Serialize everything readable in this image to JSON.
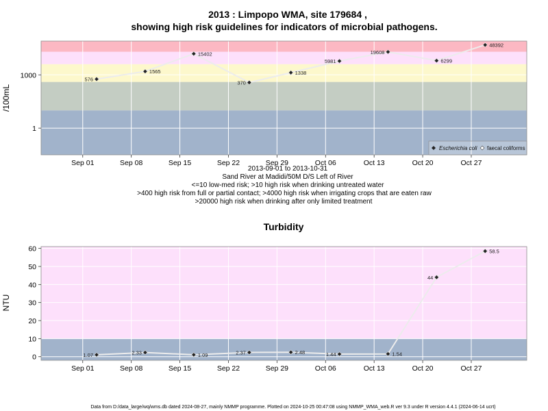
{
  "chart_data": [
    {
      "type": "line",
      "title_line1": "2013 : Limpopo WMA, site 179684 ,",
      "title_line2": "showing high risk guidelines for indicators of microbial pathogens.",
      "ylabel": "/100mL",
      "yscale": "log",
      "ylim": [
        0.0316,
        79400
      ],
      "y_ticks": [
        1,
        1000
      ],
      "y_tick_labels": [
        "1",
        "1000"
      ],
      "xlim": [
        "2013-08-26",
        "2013-11-04"
      ],
      "x_ticks": [
        "2013-09-01",
        "2013-09-08",
        "2013-09-15",
        "2013-09-22",
        "2013-09-29",
        "2013-10-06",
        "2013-10-13",
        "2013-10-20",
        "2013-10-27"
      ],
      "x_tick_labels": [
        "Sep 01",
        "Sep 08",
        "Sep 15",
        "Sep 22",
        "Sep 29",
        "Oct 06",
        "Oct 13",
        "Oct 20",
        "Oct 27"
      ],
      "bands": [
        {
          "from": 0.0316,
          "to": 10,
          "color": "#a1b3cb"
        },
        {
          "from": 10,
          "to": 400,
          "color": "#c4cdc3"
        },
        {
          "from": 400,
          "to": 4000,
          "color": "#fdf8cc"
        },
        {
          "from": 4000,
          "to": 20000,
          "color": "#fde0fb"
        },
        {
          "from": 20000,
          "to": 79400,
          "color": "#fcb8c3"
        }
      ],
      "series": [
        {
          "name": "Escherichia coli",
          "x": [
            "2013-09-03",
            "2013-09-10",
            "2013-09-17",
            "2013-09-25",
            "2013-10-01",
            "2013-10-08",
            "2013-10-15",
            "2013-10-22",
            "2013-10-29"
          ],
          "y": [
            576,
            1565,
            15402,
            370,
            1338,
            5981,
            19608,
            6299,
            48392
          ],
          "labels": [
            "576",
            "1565",
            "15402",
            "370",
            "1338",
            "5981",
            "19608",
            "6299",
            "48392"
          ],
          "label_side": [
            "left",
            "right",
            "right",
            "left",
            "right",
            "left",
            "left",
            "right",
            "right"
          ]
        },
        {
          "name": "faecal coliforms",
          "x": [],
          "y": []
        }
      ],
      "legend_position": "bottom-right",
      "x_caption": [
        "2013-09-01 to 2013-10-31",
        "Sand River at Madidi/50M D/S Left of River",
        "<=10 low-med risk; >10 high risk when drinking untreated water",
        ">400 high risk from full or partial contact; >4000 high risk when irrigating crops that are eaten raw",
        ">20000 high risk when drinking after only limited treatment"
      ]
    },
    {
      "type": "line",
      "title": "Turbidity",
      "ylabel": "NTU",
      "ylim": [
        -2,
        61
      ],
      "y_ticks": [
        0,
        10,
        20,
        30,
        40,
        50,
        60
      ],
      "y_tick_labels": [
        "0",
        "10",
        "20",
        "30",
        "40",
        "50",
        "60"
      ],
      "xlim": [
        "2013-08-26",
        "2013-11-04"
      ],
      "x_ticks": [
        "2013-09-01",
        "2013-09-08",
        "2013-09-15",
        "2013-09-22",
        "2013-09-29",
        "2013-10-06",
        "2013-10-13",
        "2013-10-20",
        "2013-10-27"
      ],
      "x_tick_labels": [
        "Sep 01",
        "Sep 08",
        "Sep 15",
        "Sep 22",
        "Sep 29",
        "Oct 06",
        "Oct 13",
        "Oct 20",
        "Oct 27"
      ],
      "bands": [
        {
          "from": -2,
          "to": 10,
          "color": "#a1b3cb"
        },
        {
          "from": 10,
          "to": 61,
          "color": "#fde0fb"
        }
      ],
      "series": [
        {
          "x": [
            "2013-09-03",
            "2013-09-10",
            "2013-09-17",
            "2013-09-25",
            "2013-10-01",
            "2013-10-08",
            "2013-10-15",
            "2013-10-22",
            "2013-10-29"
          ],
          "y": [
            1.07,
            2.33,
            1.09,
            2.37,
            2.48,
            1.44,
            1.54,
            44,
            58.5
          ],
          "labels": [
            "1.07",
            "2.33",
            "1.09",
            "2.37",
            "2.48",
            "1.44",
            "1.54",
            "44",
            "58.5"
          ],
          "label_side": [
            "left",
            "left",
            "right",
            "left",
            "right",
            "left",
            "right",
            "left",
            "right"
          ]
        }
      ]
    }
  ],
  "footer": "Data from D:/data_large/wq/wms.db dated 2024-08-27, mainly NMMP programme. Plotted on 2024-10-25 00:47:08 using NMMP_WMA_web.R ver 9.3 under R version 4.4.1 (2024-06-14 ucrt)"
}
